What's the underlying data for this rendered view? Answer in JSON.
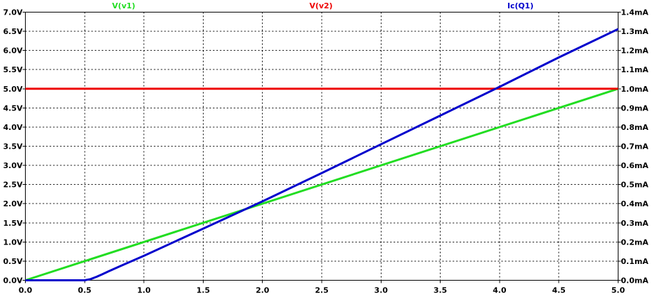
{
  "chart_data": {
    "type": "line",
    "title": "",
    "xlabel": "",
    "ylabel": "",
    "x_range": [
      0.0,
      5.0
    ],
    "x_ticks": [
      "0.0",
      "0.5",
      "1.0",
      "1.5",
      "2.0",
      "2.5",
      "3.0",
      "3.5",
      "4.0",
      "4.5",
      "5.0"
    ],
    "y_left_range": [
      0.0,
      7.0
    ],
    "y_left_ticks": [
      "0.0V",
      "0.5V",
      "1.0V",
      "1.5V",
      "2.0V",
      "2.5V",
      "3.0V",
      "3.5V",
      "4.0V",
      "4.5V",
      "5.0V",
      "5.5V",
      "6.0V",
      "6.5V",
      "7.0V"
    ],
    "y_right_range": [
      0.0,
      1.4
    ],
    "y_right_ticks": [
      "0.0mA",
      "0.1mA",
      "0.2mA",
      "0.3mA",
      "0.4mA",
      "0.5mA",
      "0.6mA",
      "0.7mA",
      "0.8mA",
      "0.9mA",
      "1.0mA",
      "1.1mA",
      "1.2mA",
      "1.3mA",
      "1.4mA"
    ],
    "grid": true,
    "legend_placement": "top",
    "series": [
      {
        "name": "V(v1)",
        "axis": "left",
        "color": "#22dd22",
        "x": [
          0.0,
          5.0
        ],
        "values": [
          0.0,
          5.0
        ]
      },
      {
        "name": "V(v2)",
        "axis": "right",
        "color": "#ee0000",
        "x": [
          0.0,
          5.0
        ],
        "values": [
          1.0,
          1.0
        ]
      },
      {
        "name": "Ic(Q1)",
        "axis": "right",
        "color": "#0000cc",
        "x": [
          0.0,
          0.5,
          0.55,
          0.6,
          0.65,
          0.7,
          0.8,
          1.0,
          1.5,
          2.0,
          2.5,
          3.0,
          3.5,
          4.0,
          4.5,
          5.0
        ],
        "values": [
          0.0,
          0.0,
          0.006,
          0.018,
          0.032,
          0.046,
          0.074,
          0.128,
          0.27,
          0.412,
          0.56,
          0.71,
          0.86,
          1.01,
          1.164,
          1.312
        ]
      }
    ]
  }
}
